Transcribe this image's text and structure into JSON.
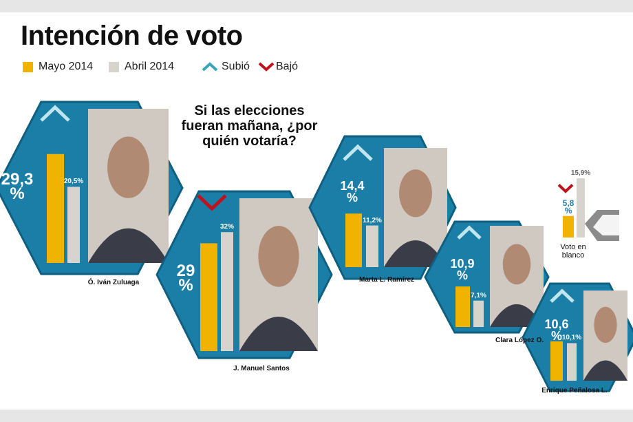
{
  "title": "Intención de voto",
  "question": "Si las elecciones fueran mañana, ¿por quién votaría?",
  "legend": {
    "mayo": "Mayo 2014",
    "abril": "Abril 2014",
    "subio": "Subió",
    "bajo": "Bajó"
  },
  "colors": {
    "mayo": "#f0b400",
    "abril": "#d6d4cc",
    "hexagon": "#1b7ea6",
    "subio": "#3aa6b9",
    "bajo": "#c0111f"
  },
  "chart_data": {
    "type": "bar",
    "title": "Intención de voto",
    "categories": [
      "Ó. Iván Zuluaga",
      "J. Manuel Santos",
      "Marta L. Ramírez",
      "Clara López O.",
      "Enrique Peñalosa L.",
      "Voto en blanco"
    ],
    "series": [
      {
        "name": "Mayo 2014",
        "values": [
          29.3,
          29,
          14.4,
          10.9,
          10.6,
          5.8
        ]
      },
      {
        "name": "Abril 2014",
        "values": [
          20.5,
          32,
          11.2,
          7.1,
          10.1,
          15.9
        ]
      }
    ],
    "value_labels": {
      "mayo": [
        "29,3 %",
        "29 %",
        "14,4 %",
        "10,9 %",
        "10,6 %",
        "5,8 %"
      ],
      "abril": [
        "20,5%",
        "32%",
        "11,2%",
        "7,1%",
        "10,1%",
        "15,9%"
      ]
    },
    "trend": [
      "up",
      "down",
      "up",
      "up",
      "up",
      "down"
    ],
    "legend_position": "top-left",
    "grid": false
  }
}
